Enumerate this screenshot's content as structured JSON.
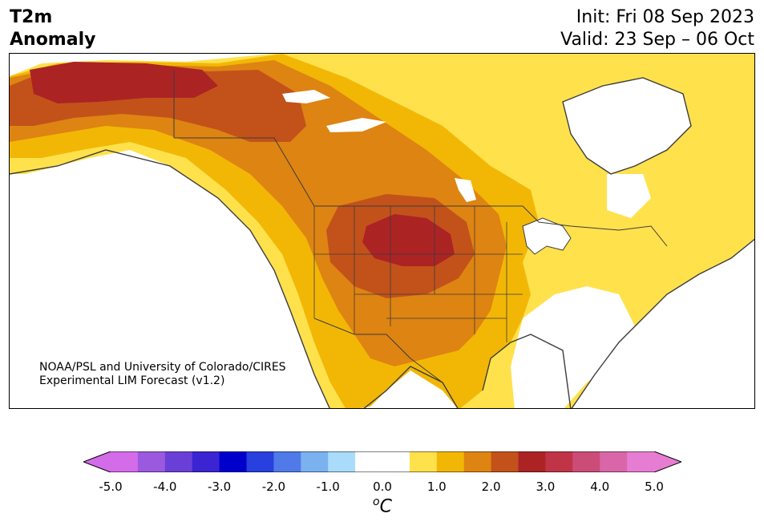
{
  "title": {
    "left_line1": "T2m",
    "left_line2": "Anomaly",
    "init": "Init: Fri 08 Sep 2023",
    "valid": "Valid: 23 Sep – 06 Oct"
  },
  "credit": {
    "line1": "NOAA/PSL and University of Colorado/CIRES",
    "line2": "Experimental LIM Forecast (v1.2)"
  },
  "colorbar": {
    "ticks": [
      "-5.0",
      "-4.0",
      "-3.0",
      "-2.0",
      "-1.0",
      "0.0",
      "1.0",
      "2.0",
      "3.0",
      "4.0",
      "5.0"
    ],
    "unit_base": "C",
    "unit_sup": "o",
    "colors": {
      "below": "#d46be8",
      "bins": [
        "#d46be8",
        "#9b59e0",
        "#6a3fd8",
        "#3b24d2",
        "#0000cc",
        "#2840de",
        "#4f7ae8",
        "#7ab2f0",
        "#a9dcfa",
        "#ffffff",
        "#ffffff",
        "#ffe14c",
        "#f2b705",
        "#de8412",
        "#c2521a",
        "#ac2324",
        "#c03448",
        "#cc4c78",
        "#d966a8",
        "#e67dd2"
      ],
      "above": "#e67dd2"
    }
  },
  "map": {
    "projection": "North America",
    "anomaly_peak_region": "Northern Plains",
    "colors": {
      "plus_0_5_to_1": "#ffe14c",
      "plus_1_to_1_5": "#f2b705",
      "plus_1_5_to_2": "#de8412",
      "plus_2_to_2_5": "#c2521a",
      "plus_2_5_to_3": "#ac2324",
      "near_zero": "#ffffff",
      "coastline": "#3c3c3c"
    }
  }
}
